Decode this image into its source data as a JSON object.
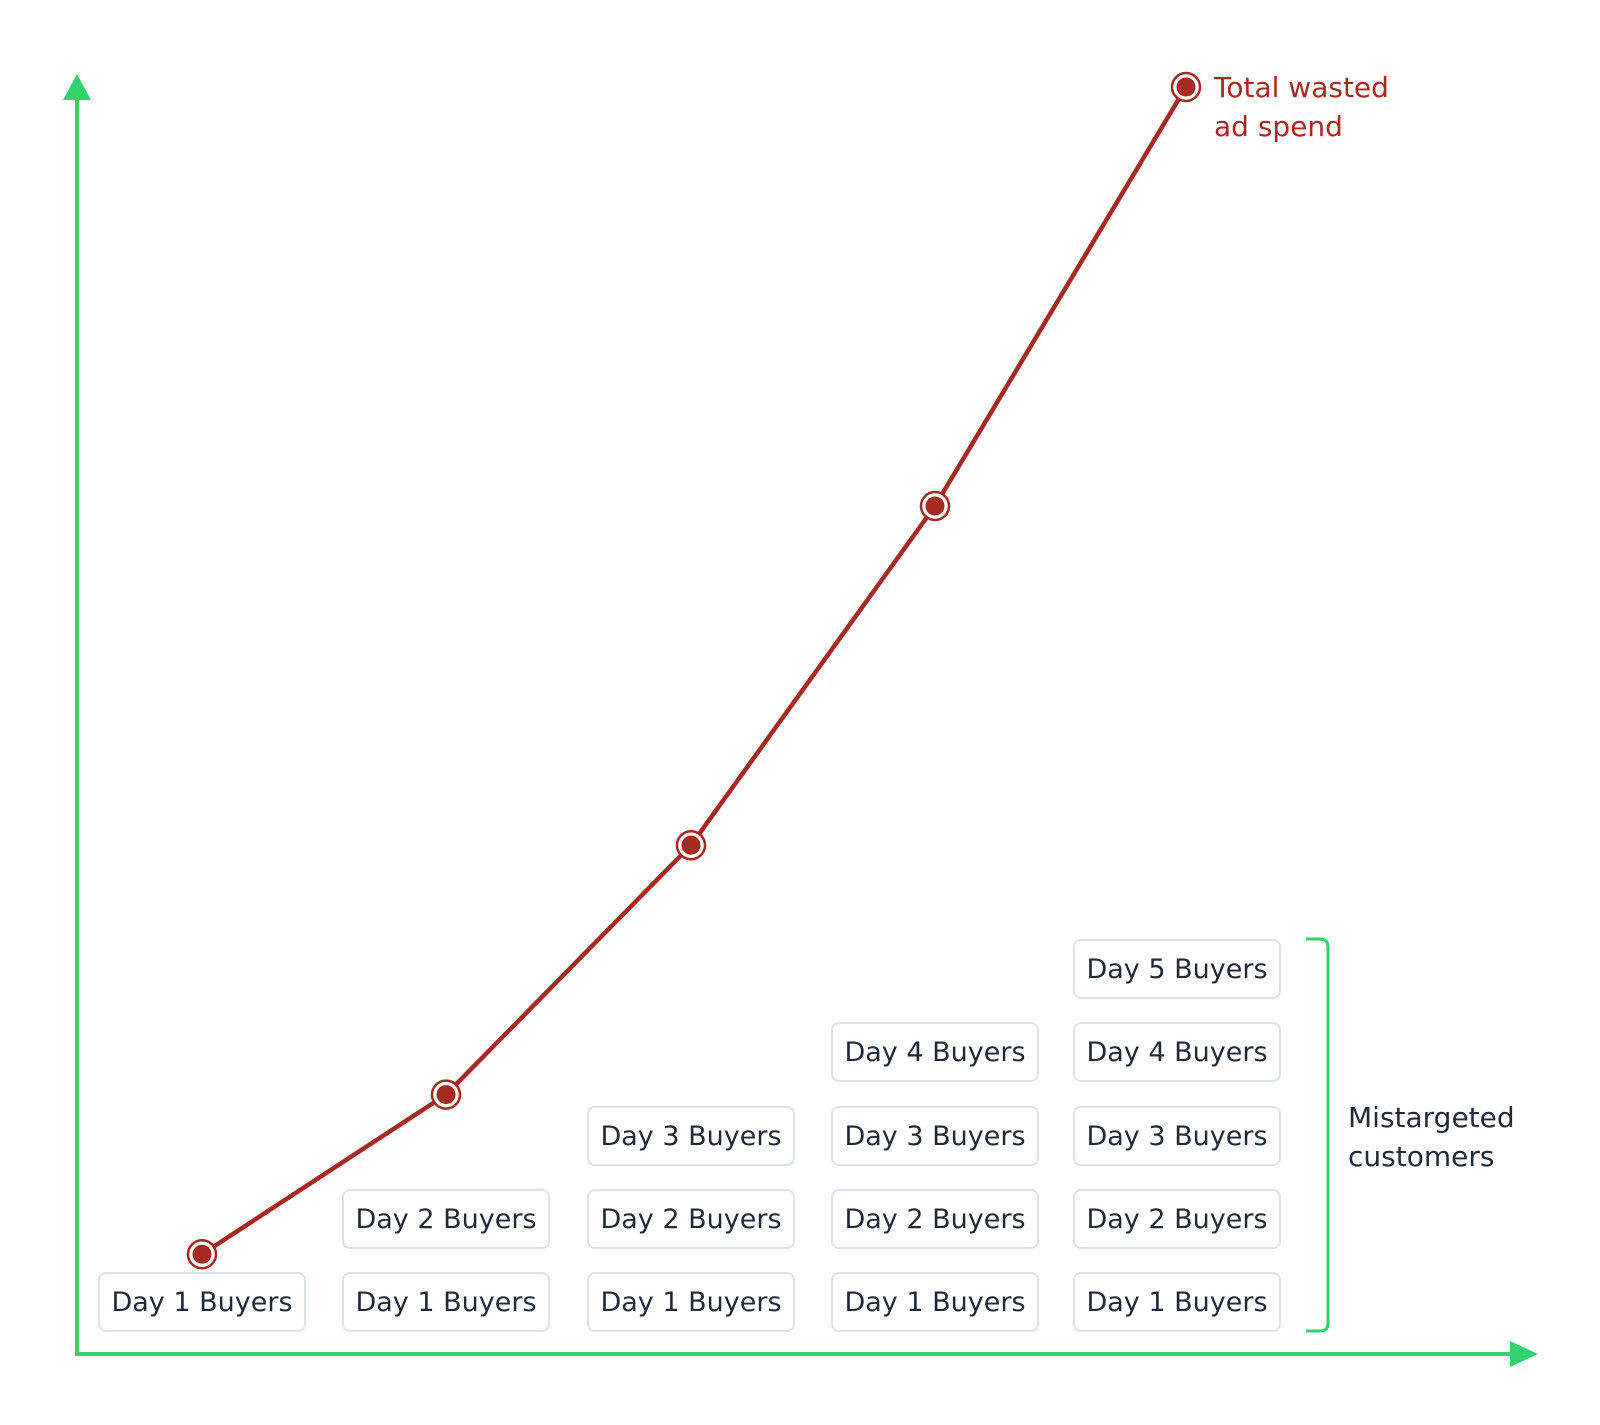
{
  "chart_data": {
    "type": "line",
    "title": "",
    "xlabel": "",
    "ylabel": "",
    "x": [
      "Day 1",
      "Day 2",
      "Day 3",
      "Day 4",
      "Day 5"
    ],
    "series": [
      {
        "name": "Total wasted ad spend",
        "values": [
          1.0,
          2.6,
          5.1,
          8.5,
          12.7
        ]
      }
    ],
    "ylim": [
      0,
      12.8
    ],
    "grid": false,
    "stacks": [
      [
        "Day 1 Buyers"
      ],
      [
        "Day 1 Buyers",
        "Day 2 Buyers"
      ],
      [
        "Day 1 Buyers",
        "Day 2 Buyers",
        "Day 3 Buyers"
      ],
      [
        "Day 1 Buyers",
        "Day 2 Buyers",
        "Day 3 Buyers",
        "Day 4 Buyers"
      ],
      [
        "Day 1 Buyers",
        "Day 2 Buyers",
        "Day 3 Buyers",
        "Day 4 Buyers",
        "Day 5 Buyers"
      ]
    ],
    "annotations": {
      "line_label": [
        "Total wasted",
        "ad spend"
      ],
      "bracket_label": [
        "Mistargeted",
        "customers"
      ]
    },
    "colors": {
      "axis": "#34d16d",
      "line": "#a52a22",
      "text": "#1f2937",
      "box_border": "#dde2ea"
    }
  }
}
